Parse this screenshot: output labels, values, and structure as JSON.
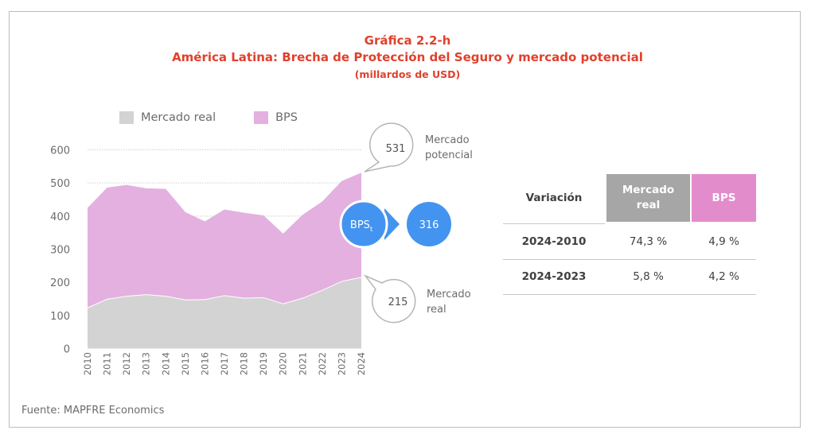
{
  "header": {
    "figure_number": "Gráfica 2.2-h",
    "title": "América Latina: Brecha de Protección del Seguro y mercado potencial",
    "units": "(millardos de USD)"
  },
  "colors": {
    "title": "#e0412c",
    "mercado_real": "#d3d3d3",
    "bps": "#e3b0e0",
    "callout_circle": "#4394f0",
    "table_header_mercado_real": "#a6a6a6",
    "table_header_bps": "#e38ccc"
  },
  "chart_data": {
    "type": "area",
    "stacked": true,
    "title": "América Latina: Brecha de Protección del Seguro y mercado potencial",
    "subtitle": "(millardos de USD)",
    "xlabel": "",
    "ylabel": "",
    "x": [
      "2010",
      "2011",
      "2012",
      "2013",
      "2014",
      "2015",
      "2016",
      "2017",
      "2018",
      "2019",
      "2020",
      "2021",
      "2022",
      "2023",
      "2024"
    ],
    "yticks": [
      "0",
      "100",
      "200",
      "300",
      "400",
      "500",
      "600"
    ],
    "ylim": [
      0,
      600
    ],
    "grid": true,
    "legend_position": "top-left",
    "series": [
      {
        "name": "Mercado real",
        "values": [
          123,
          149,
          158,
          163,
          158,
          147,
          148,
          160,
          152,
          154,
          135,
          152,
          176,
          203,
          215
        ]
      },
      {
        "name": "BPS",
        "values": [
          302,
          337,
          336,
          321,
          324,
          265,
          236,
          260,
          258,
          248,
          212,
          252,
          268,
          303,
          316
        ]
      }
    ],
    "annotations": {
      "potential_market": {
        "value": "531",
        "label_line1": "Mercado",
        "label_line2": "potencial"
      },
      "real_market": {
        "value": "215",
        "label_line1": "Mercado",
        "label_line2": "real"
      },
      "bps_badge": {
        "label": "BPS",
        "subscript": "t",
        "value": "316"
      }
    }
  },
  "legend": [
    {
      "label": "Mercado real"
    },
    {
      "label": "BPS"
    }
  ],
  "table": {
    "headers": [
      "Variación",
      "Mercado real",
      "BPS"
    ],
    "header_mercado_line1": "Mercado",
    "header_mercado_line2": "real",
    "rows": [
      [
        "2024-2010",
        "74,3 %",
        "4,9 %"
      ],
      [
        "2024-2023",
        "5,8 %",
        "4,2 %"
      ]
    ]
  },
  "source": "Fuente: MAPFRE Economics"
}
